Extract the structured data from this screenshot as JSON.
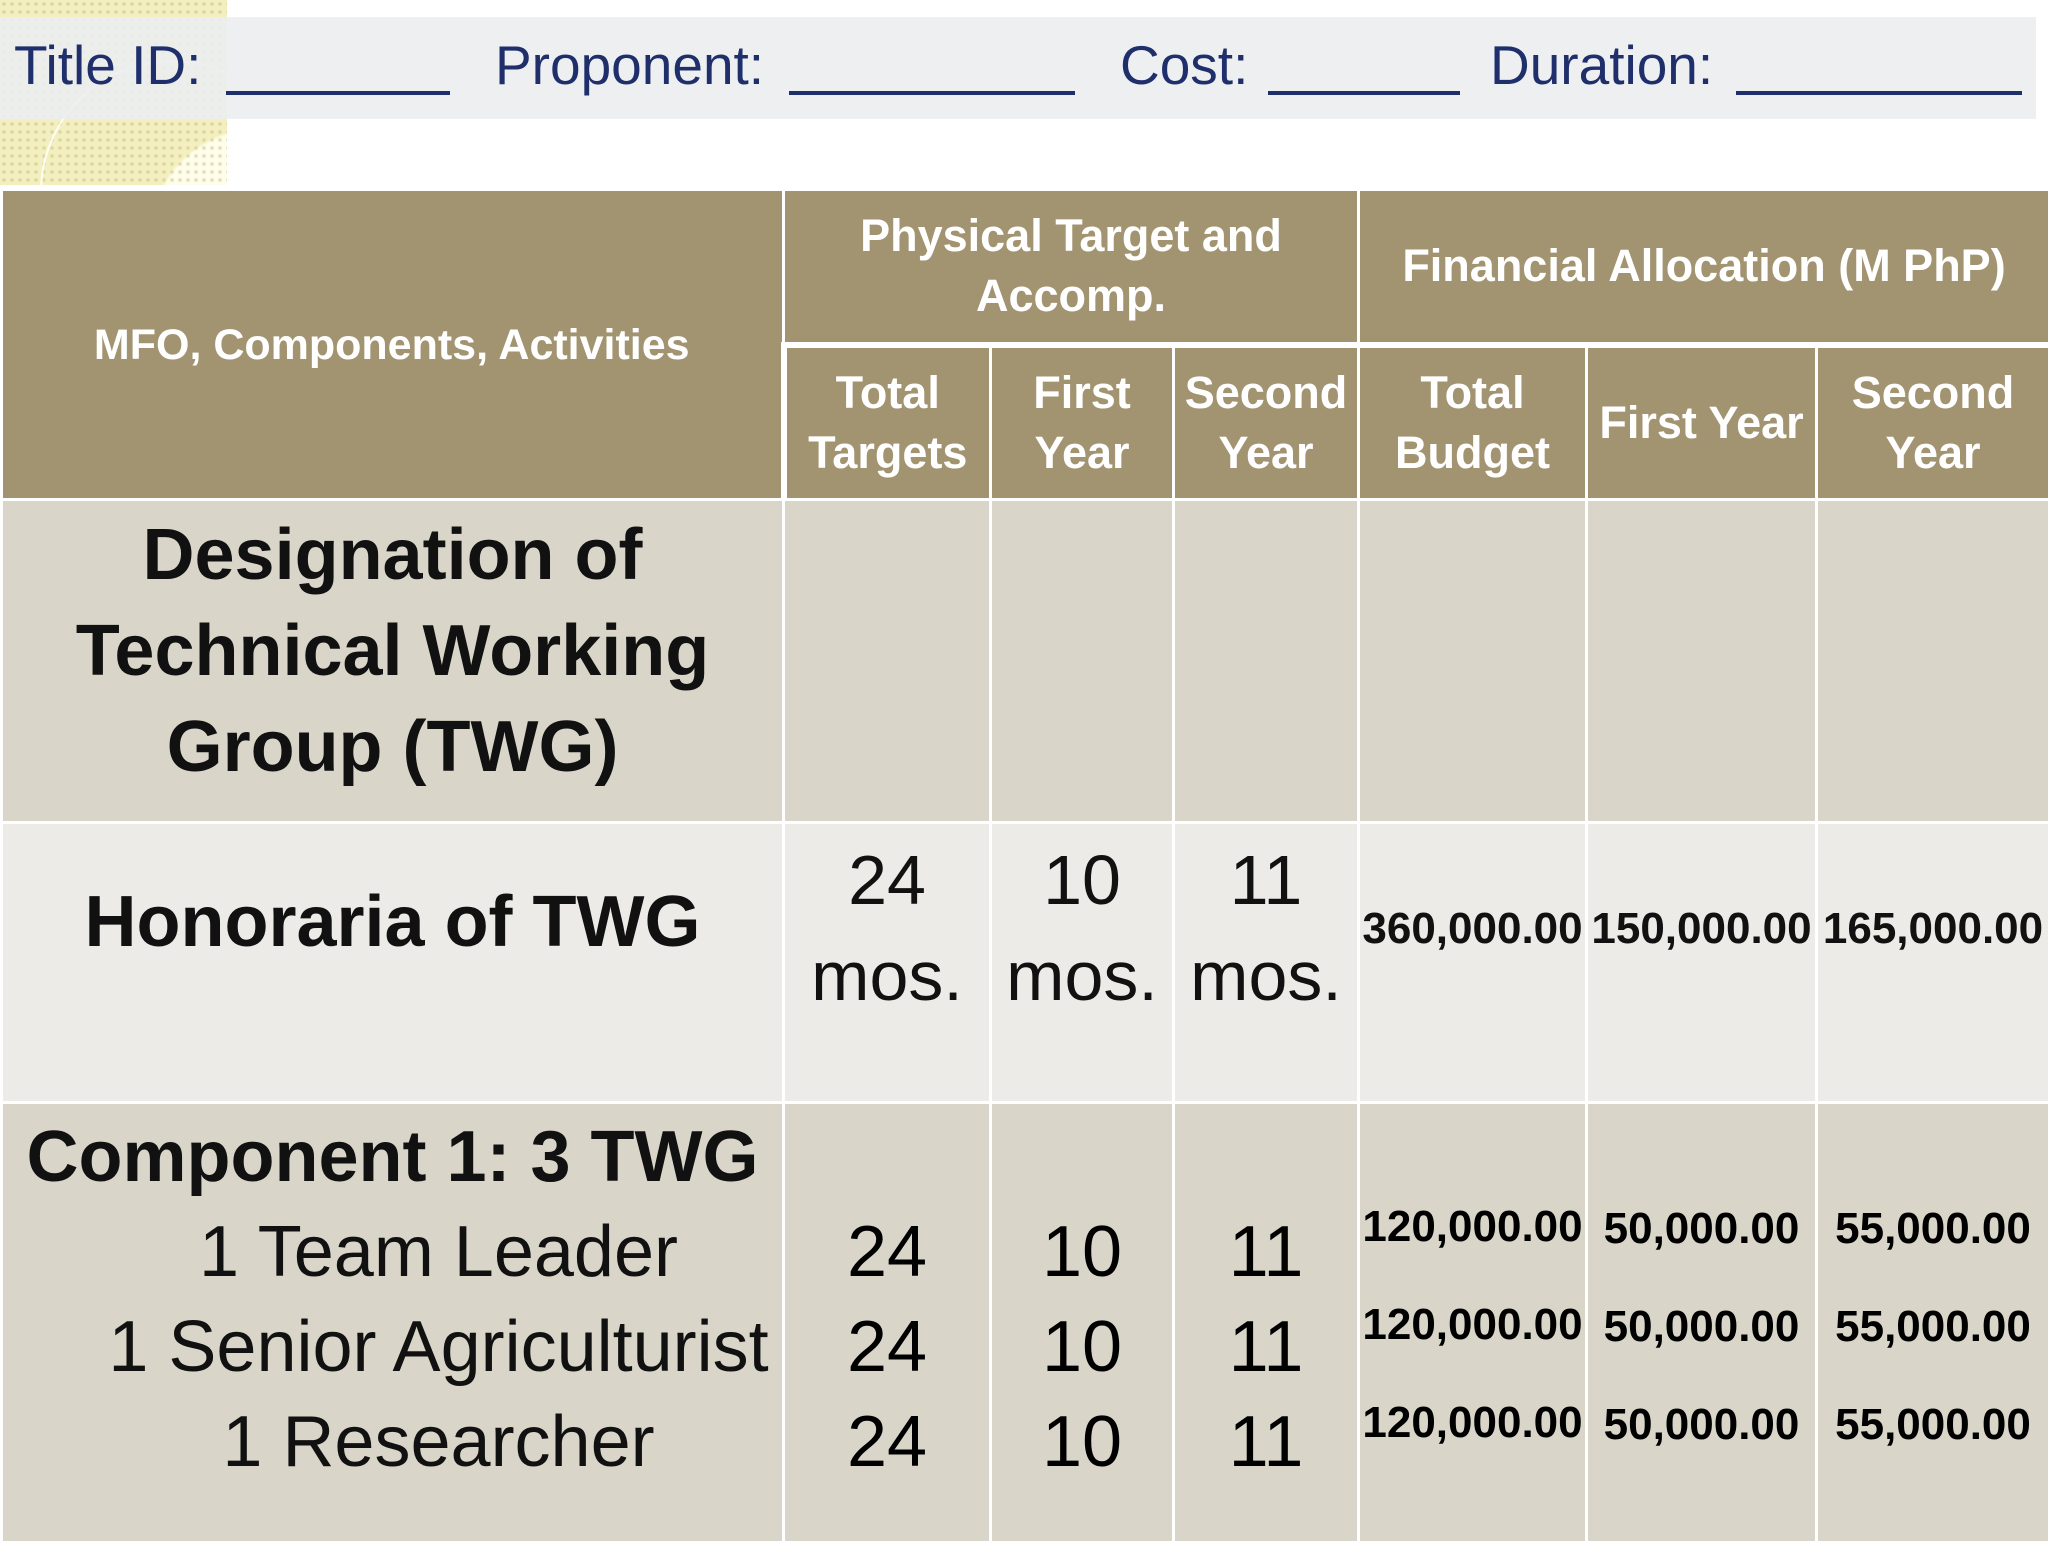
{
  "header_fields": {
    "title_id": "Title ID:",
    "proponent": "Proponent:",
    "cost": "Cost:",
    "duration": "Duration:"
  },
  "table": {
    "headers": {
      "mfo": "MFO, Components, Activities",
      "physical_group": "Physical Target and Accomp.",
      "financial_group": "Financial Allocation (M PhP)",
      "total_targets": "Total Targets",
      "first_year_phys": "First Year",
      "second_year_phys": "Second Year",
      "total_budget": "Total Budget",
      "first_year_fin": "First Year",
      "second_year_fin": "Second Year"
    },
    "rows": [
      {
        "label": "Designation of Technical Working Group (TWG)"
      },
      {
        "label": "Honoraria of TWG",
        "total_targets": "24 mos.",
        "first_year": "10 mos.",
        "second_year": "11 mos.",
        "total_budget": "360,000.00",
        "first_year_budget": "150,000.00",
        "second_year_budget": "165,000.00"
      },
      {
        "label": "Component 1: 3 TWG",
        "items": [
          {
            "label": "1 Team Leader",
            "total_targets": "24",
            "first_year": "10",
            "second_year": "11",
            "total_budget": "120,000.00",
            "first_year_budget": "50,000.00",
            "second_year_budget": "55,000.00"
          },
          {
            "label": "1 Senior Agriculturist",
            "total_targets": "24",
            "first_year": "10",
            "second_year": "11",
            "total_budget": "120,000.00",
            "first_year_budget": "50,000.00",
            "second_year_budget": "55,000.00"
          },
          {
            "label": "1 Researcher",
            "total_targets": "24",
            "first_year": "10",
            "second_year": "11",
            "total_budget": "120,000.00",
            "first_year_budget": "50,000.00",
            "second_year_budget": "55,000.00"
          }
        ]
      }
    ]
  }
}
